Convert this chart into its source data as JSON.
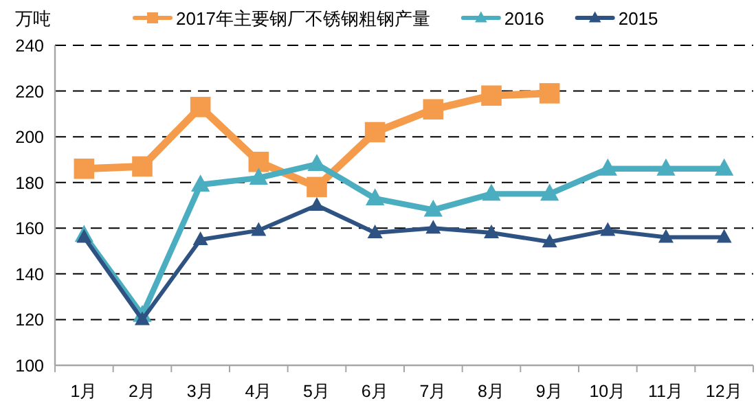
{
  "chart_data": {
    "type": "line",
    "ylabel": "万吨",
    "categories": [
      "1月",
      "2月",
      "3月",
      "4月",
      "5月",
      "6月",
      "7月",
      "8月",
      "9月",
      "10月",
      "11月",
      "12月"
    ],
    "series": [
      {
        "name": "2017年主要钢厂不锈钢粗钢产量",
        "color": "#f59c4c",
        "marker": "square",
        "values": [
          186,
          187,
          213,
          189,
          178,
          202,
          212,
          218,
          219,
          null,
          null,
          null
        ]
      },
      {
        "name": "2016",
        "color": "#4aadc0",
        "marker": "triangle",
        "values": [
          157,
          122,
          179,
          182,
          188,
          173,
          168,
          175,
          175,
          186,
          186,
          186
        ]
      },
      {
        "name": "2015",
        "color": "#2e5383",
        "marker": "triangle",
        "values": [
          156,
          120,
          155,
          159,
          170,
          158,
          160,
          158,
          154,
          159,
          156,
          156
        ]
      }
    ],
    "ylim": [
      100,
      240
    ],
    "yticks": [
      100,
      120,
      140,
      160,
      180,
      200,
      220,
      240
    ],
    "grid": "y",
    "legend": "top",
    "line_style": "solid"
  }
}
